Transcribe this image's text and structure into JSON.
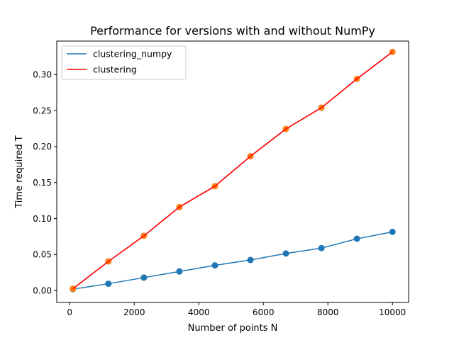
{
  "chart_data": {
    "type": "line",
    "title": "Performance for versions with and without NumPy",
    "xlabel": "Number of points N",
    "ylabel": "Time required T",
    "xlim": [
      -400,
      10500
    ],
    "ylim": [
      -0.0165,
      0.3465
    ],
    "x_ticks": [
      0,
      2000,
      4000,
      6000,
      8000,
      10000
    ],
    "x_tick_labels": [
      "0",
      "2000",
      "4000",
      "6000",
      "8000",
      "10000"
    ],
    "y_ticks": [
      0.0,
      0.05,
      0.1,
      0.15,
      0.2,
      0.25,
      0.3
    ],
    "y_tick_labels": [
      "0.00",
      "0.05",
      "0.10",
      "0.15",
      "0.20",
      "0.25",
      "0.30"
    ],
    "grid": false,
    "legend_position": "top-left",
    "x": [
      100,
      1200,
      2300,
      3400,
      4500,
      5600,
      6700,
      7800,
      8900,
      10000
    ],
    "series": [
      {
        "name": "clustering_numpy",
        "line_color": "#1f77b4",
        "marker_color": "#1f77b4",
        "values": [
          0.002,
          0.0095,
          0.018,
          0.0265,
          0.035,
          0.0425,
          0.0515,
          0.059,
          0.072,
          0.0815
        ]
      },
      {
        "name": "clustering",
        "line_color": "#ff0000",
        "marker_color": "#ff7f0e",
        "values": [
          0.0025,
          0.0405,
          0.076,
          0.116,
          0.145,
          0.1865,
          0.2245,
          0.254,
          0.294,
          0.3315
        ]
      }
    ]
  }
}
